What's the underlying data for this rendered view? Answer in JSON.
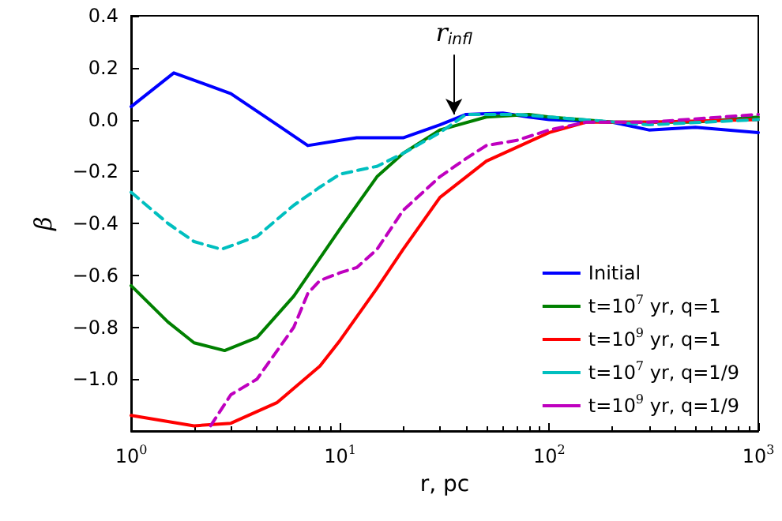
{
  "chart_data": {
    "type": "line",
    "xlabel": "r, pc",
    "ylabel": "β",
    "log": "x",
    "xlim": [
      1,
      1000
    ],
    "ylim": [
      -1.2,
      0.4
    ],
    "xticks": [
      {
        "value": 1,
        "label": "10$^{0}$"
      },
      {
        "value": 10,
        "label": "10$^{1}$"
      },
      {
        "value": 100,
        "label": "10$^{2}$"
      },
      {
        "value": 1000,
        "label": "10$^{3}$"
      }
    ],
    "yticks": [
      {
        "value": -1.0,
        "label": "−1.0"
      },
      {
        "value": -0.8,
        "label": "−0.8"
      },
      {
        "value": -0.6,
        "label": "−0.6"
      },
      {
        "value": -0.4,
        "label": "−0.4"
      },
      {
        "value": -0.2,
        "label": "−0.2"
      },
      {
        "value": 0.0,
        "label": "0.0"
      },
      {
        "value": 0.2,
        "label": "0.2"
      },
      {
        "value": 0.4,
        "label": "0.4"
      }
    ],
    "grid": false,
    "legend": "bottom right",
    "marker": "none",
    "annotations": [
      {
        "text": "r$_{infl}$",
        "x": 35,
        "y": 0.02
      }
    ],
    "series": [
      {
        "name": "Initial",
        "color": "#0000ff",
        "line_style": "solid",
        "x": [
          1,
          1.6,
          3,
          5,
          7,
          10,
          12,
          20,
          30,
          40,
          60,
          80,
          100,
          200,
          300,
          500,
          1000
        ],
        "values": [
          0.05,
          0.18,
          0.1,
          -0.02,
          -0.1,
          -0.08,
          -0.07,
          -0.07,
          -0.02,
          0.02,
          0.025,
          0.01,
          0.0,
          -0.01,
          -0.04,
          -0.03,
          -0.05
        ]
      },
      {
        "name": "t=10$^{7}$ yr, q=1",
        "color": "#008000",
        "line_style": "solid",
        "x": [
          1,
          1.5,
          2,
          2.8,
          4,
          6,
          10,
          15,
          20,
          30,
          50,
          80,
          100,
          200,
          500,
          1000
        ],
        "values": [
          -0.64,
          -0.78,
          -0.86,
          -0.89,
          -0.84,
          -0.68,
          -0.42,
          -0.22,
          -0.13,
          -0.04,
          0.01,
          0.02,
          0.01,
          -0.01,
          -0.01,
          0.01
        ]
      },
      {
        "name": "t=10$^{9}$ yr, q=1",
        "color": "#ff0000",
        "line_style": "solid",
        "x": [
          1,
          2,
          3,
          5,
          8,
          10,
          15,
          20,
          30,
          50,
          100,
          150,
          300,
          1000
        ],
        "values": [
          -1.14,
          -1.18,
          -1.17,
          -1.09,
          -0.95,
          -0.85,
          -0.65,
          -0.5,
          -0.3,
          -0.16,
          -0.05,
          -0.01,
          -0.01,
          0.0
        ]
      },
      {
        "name": "t=10$^{7}$ yr, q=1/9",
        "color": "#00bfbf",
        "line_style": "dashed",
        "x": [
          1,
          1.5,
          2,
          2.7,
          4,
          6,
          8,
          10,
          15,
          20,
          30,
          40,
          70,
          100,
          300,
          1000
        ],
        "values": [
          -0.28,
          -0.4,
          -0.47,
          -0.5,
          -0.45,
          -0.33,
          -0.26,
          -0.21,
          -0.18,
          -0.13,
          -0.05,
          0.02,
          0.02,
          0.01,
          -0.02,
          0.0
        ]
      },
      {
        "name": "t=10$^{9}$ yr, q=1/9",
        "color": "#bf00bf",
        "line_style": "dashed",
        "x": [
          2.4,
          3,
          4,
          6,
          7,
          8,
          10,
          12,
          15,
          20,
          30,
          40,
          50,
          70,
          100,
          150,
          300,
          1000
        ],
        "values": [
          -1.18,
          -1.06,
          -1.0,
          -0.8,
          -0.67,
          -0.62,
          -0.59,
          -0.57,
          -0.5,
          -0.35,
          -0.22,
          -0.15,
          -0.1,
          -0.08,
          -0.04,
          -0.01,
          -0.01,
          0.02
        ]
      }
    ]
  }
}
